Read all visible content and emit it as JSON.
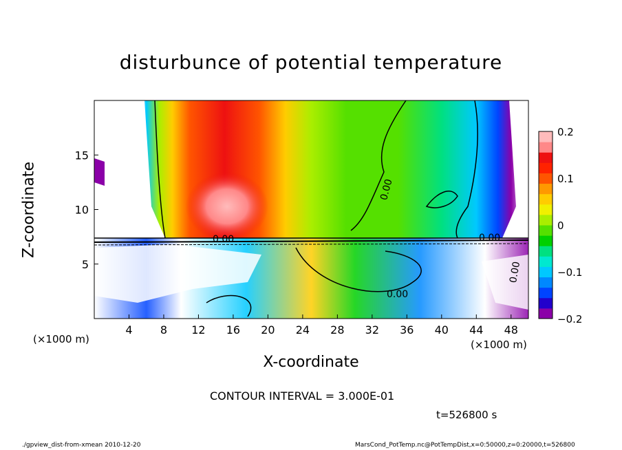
{
  "chart_data": {
    "type": "heatmap",
    "title": "disturbunce of potential temperature",
    "xlabel": "X-coordinate",
    "ylabel": "Z-coordinate",
    "x_unit_left": "(×1000 m)",
    "x_unit_right": "(×1000 m)",
    "xlim": [
      0,
      50
    ],
    "ylim": [
      0,
      20
    ],
    "x_ticks": [
      "4",
      "8",
      "12",
      "16",
      "20",
      "24",
      "28",
      "32",
      "36",
      "40",
      "44",
      "48"
    ],
    "y_ticks": [
      "5",
      "10",
      "15"
    ],
    "colorbar": {
      "range": [
        -0.2,
        0.2
      ],
      "tick_labels": [
        "0.2",
        "0.1",
        "0",
        "−0.1",
        "−0.2"
      ],
      "colors": [
        "#8b00a8",
        "#2200cc",
        "#0044ff",
        "#0088ff",
        "#00c8ff",
        "#00e8d0",
        "#00e080",
        "#00d000",
        "#55e000",
        "#aaee00",
        "#f0f000",
        "#ffcc00",
        "#ff9900",
        "#ff5500",
        "#ff2200",
        "#ee1111",
        "#ff8888",
        "#ffbbbb"
      ]
    },
    "contour_labels": [
      "0.00",
      "0.00",
      "0.00",
      "0.00",
      "0.00"
    ],
    "contour_interval": "CONTOUR INTERVAL = 3.000E-01",
    "time_label": "t=526800 s"
  },
  "footer": {
    "left": "./gpview_dist-from-xmean  2010-12-20",
    "right": "MarsCond_PotTemp.nc@PotTempDist,x=0:50000,z=0:20000,t=526800"
  }
}
